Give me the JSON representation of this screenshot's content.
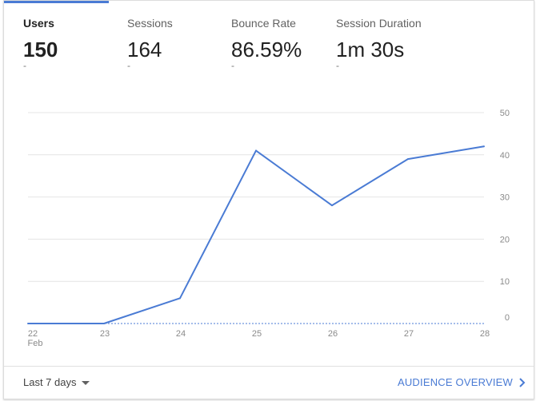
{
  "metrics": [
    {
      "label": "Users",
      "value": "150",
      "delta": "-"
    },
    {
      "label": "Sessions",
      "value": "164",
      "delta": "-"
    },
    {
      "label": "Bounce Rate",
      "value": "86.59%",
      "delta": "-"
    },
    {
      "label": "Session Duration",
      "value": "1m 30s",
      "delta": "-"
    }
  ],
  "footer": {
    "range_label": "Last 7 days",
    "overview_link": "AUDIENCE OVERVIEW"
  },
  "colors": {
    "accent": "#4a7bd4"
  },
  "icons": {
    "range_dropdown": "caret-down-icon",
    "overview": "chevron-right-icon"
  },
  "chart_data": {
    "type": "line",
    "categories": [
      "22",
      "23",
      "24",
      "25",
      "26",
      "27",
      "28"
    ],
    "x_sublabel": "Feb",
    "series": [
      {
        "values": [
          0,
          0,
          6,
          41,
          28,
          39,
          42
        ]
      }
    ],
    "yticks": [
      0,
      10,
      20,
      30,
      40,
      50
    ],
    "ylim": [
      0,
      50
    ],
    "grid": true,
    "y_axis_side": "right"
  }
}
